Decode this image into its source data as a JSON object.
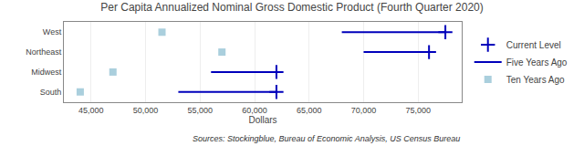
{
  "chart_data": {
    "type": "dot",
    "title": "Per Capita Annualized Nominal Gross Domestic Product (Fourth Quarter 2020)",
    "x_label": "Dollars",
    "annotations": [
      "Sources: Stockingblue, Bureau of Economic Analysis, US Census Bureau"
    ],
    "orientation": "horizontal",
    "categories": [
      "West",
      "Northeast",
      "Midwest",
      "South"
    ],
    "series": [
      {
        "name": "Current Level",
        "color": "#0000bb",
        "marker": "plus",
        "values": [
          77500,
          76000,
          62000,
          62000
        ]
      },
      {
        "name": "Five Years Ago",
        "color": "#0000bb",
        "line_style": "solid",
        "values": [
          68000,
          70000,
          56000,
          53000
        ]
      },
      {
        "name": "Ten Years Ago",
        "color": "#aacfdd",
        "marker": "square",
        "values": [
          51500,
          57000,
          47000,
          44000
        ]
      }
    ],
    "xlim": [
      42500,
      79000
    ],
    "xticks": [
      {
        "value": 45000,
        "label": "45,000"
      },
      {
        "value": 50000,
        "label": "50,000"
      },
      {
        "value": 55000,
        "label": "55,000"
      },
      {
        "value": 60000,
        "label": "60,000"
      },
      {
        "value": 65000,
        "label": "65,000"
      },
      {
        "value": 70000,
        "label": "70,000"
      },
      {
        "value": 75000,
        "label": "75,000"
      }
    ],
    "grid": true,
    "legend": "right"
  }
}
